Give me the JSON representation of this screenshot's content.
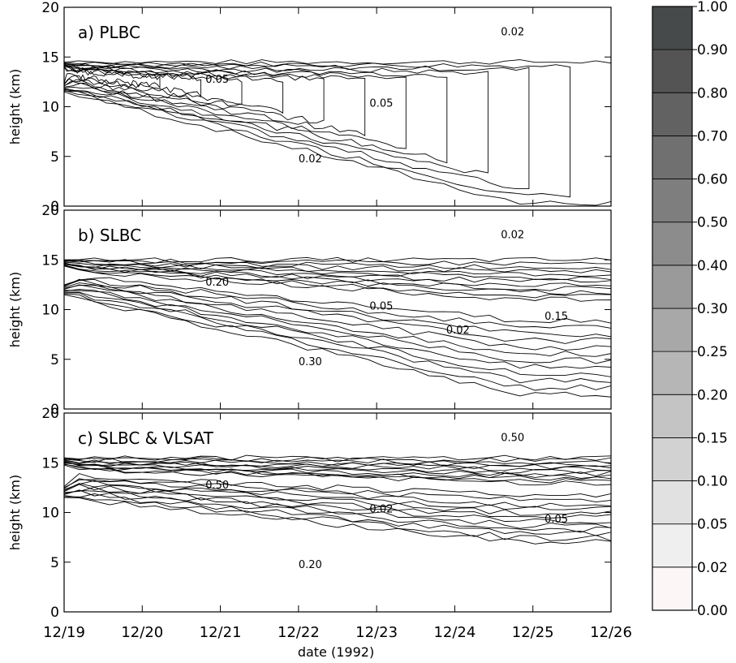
{
  "chart_data": {
    "type": "heatmap",
    "shared_x": {
      "label": "date (1992)",
      "ticks": [
        "12/19",
        "12/20",
        "12/21",
        "12/22",
        "12/23",
        "12/24",
        "12/25",
        "12/26"
      ]
    },
    "panels": [
      {
        "title": "a)  PLBC",
        "ylabel": "height (km)",
        "ylim": [
          0,
          20
        ],
        "y_ticks": [
          "0",
          "5",
          "10",
          "15",
          "20"
        ],
        "contour_labels": [
          "0.02",
          "0.05",
          "0.05",
          "0.02"
        ],
        "layer": {
          "top_km": 14.5,
          "bottom_start_km": 11.5,
          "bottom_end_km": 0.3,
          "max_fraction": 1.0
        }
      },
      {
        "title": "b)  SLBC",
        "ylabel": "height (km)",
        "ylim": [
          0,
          20
        ],
        "y_ticks": [
          "0",
          "5",
          "10",
          "15",
          "20"
        ],
        "contour_labels": [
          "0.30",
          "0.20",
          "0.05",
          "0.02",
          "0.15",
          "0.02"
        ],
        "layer": {
          "top_km": 15.0,
          "bottom_start_km": 11.5,
          "bottom_end_km": 1.5,
          "max_fraction": 1.0
        }
      },
      {
        "title": "c)  SLBC & VLSAT",
        "ylabel": "height (km)",
        "ylim": [
          0,
          20
        ],
        "y_ticks": [
          "0",
          "5",
          "10",
          "15",
          "20"
        ],
        "contour_labels": [
          "0.20",
          "0.50",
          "0.02",
          "0.50",
          "0.05"
        ],
        "layer": {
          "top_km": 15.5,
          "bottom_start_km": 11.5,
          "bottom_end_km": 7.0,
          "max_fraction": 1.0
        }
      }
    ],
    "colorbar": {
      "levels": [
        "0.00",
        "0.02",
        "0.05",
        "0.10",
        "0.15",
        "0.20",
        "0.25",
        "0.30",
        "0.40",
        "0.50",
        "0.60",
        "0.70",
        "0.80",
        "0.90",
        "1.00"
      ],
      "colors": [
        "#fdf6f6",
        "#efefef",
        "#e1e1e1",
        "#d2d2d2",
        "#c4c4c4",
        "#b6b6b6",
        "#a8a8a8",
        "#9a9a9a",
        "#8c8c8c",
        "#7e7e7e",
        "#707070",
        "#626262",
        "#545454",
        "#474a4a"
      ]
    }
  }
}
